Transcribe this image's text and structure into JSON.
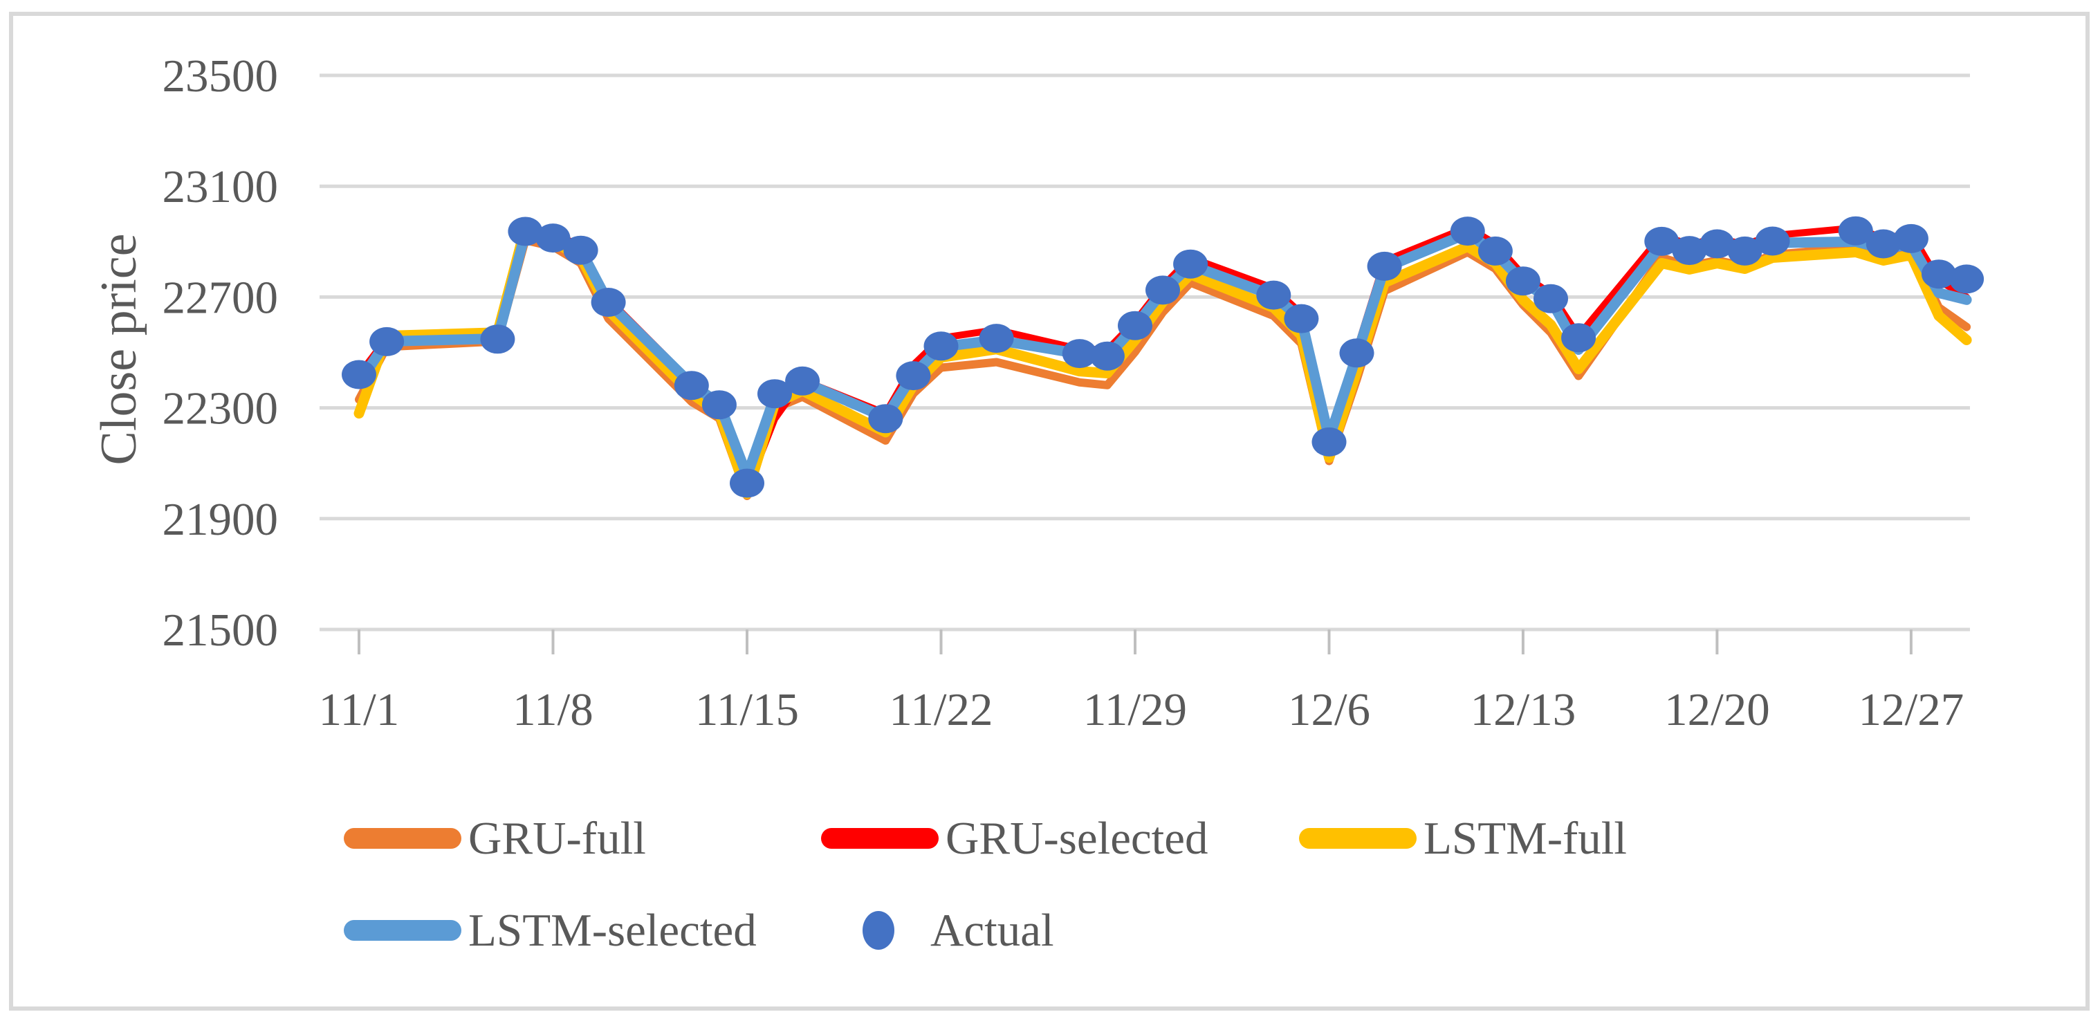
{
  "figure": {
    "background": "#ffffff",
    "border_color": "#d9d9d9"
  },
  "axis": {
    "text_color": "#595959",
    "grid_color": "#d9d9d9",
    "tick_color": "#bfbfbf"
  },
  "chart_data": {
    "type": "line",
    "title": "",
    "xlabel": "",
    "ylabel": "Close price",
    "ylim": [
      21500,
      23500
    ],
    "yticks": [
      21500,
      21900,
      22300,
      22700,
      23100,
      23500
    ],
    "xtick_labels": [
      "11/1",
      "11/8",
      "11/15",
      "11/22",
      "11/29",
      "12/6",
      "12/13",
      "12/20",
      "12/27"
    ],
    "grid": "horizontal",
    "legend_position": "bottom",
    "x": [
      "11/1",
      "11/2",
      "11/6",
      "11/7",
      "11/8",
      "11/9",
      "11/10",
      "11/13",
      "11/14",
      "11/15",
      "11/16",
      "11/17",
      "11/20",
      "11/21",
      "11/22",
      "11/24",
      "11/27",
      "11/28",
      "11/29",
      "11/30",
      "12/1",
      "12/4",
      "12/5",
      "12/6",
      "12/7",
      "12/8",
      "12/11",
      "12/12",
      "12/13",
      "12/14",
      "12/15",
      "12/18",
      "12/19",
      "12/20",
      "12/21",
      "12/22",
      "12/25",
      "12/26",
      "12/27",
      "12/28",
      "12/29"
    ],
    "series": [
      {
        "name": "GRU-full",
        "color": "#ED7D31",
        "marker": "line",
        "values": [
          22330,
          22520,
          22540,
          22905,
          22882,
          22822,
          22622,
          22322,
          22262,
          21982,
          22298,
          22340,
          22182,
          22352,
          22445,
          22465,
          22392,
          22382,
          22502,
          22645,
          22752,
          22632,
          22532,
          22108,
          22402,
          22722,
          22862,
          22802,
          22672,
          22572,
          22415,
          22842,
          22812,
          22832,
          22812,
          22852,
          22880,
          22852,
          22872,
          22662,
          22592
        ]
      },
      {
        "name": "GRU-selected",
        "color": "#FF0000",
        "marker": "line",
        "values": [
          22420,
          22550,
          22558,
          22940,
          22932,
          22882,
          22692,
          22392,
          22322,
          22005,
          22260,
          22400,
          22280,
          22455,
          22552,
          22582,
          22512,
          22510,
          22612,
          22740,
          22842,
          22732,
          22640,
          22195,
          22510,
          22830,
          22952,
          22892,
          22780,
          22712,
          22560,
          22922,
          22890,
          22912,
          22890,
          22922,
          22950,
          22912,
          22930,
          22760,
          22700
        ]
      },
      {
        "name": "LSTM-full",
        "color": "#FFC000",
        "marker": "line",
        "values": [
          22280,
          22560,
          22572,
          22950,
          22900,
          22845,
          22652,
          22352,
          22282,
          21990,
          22315,
          22362,
          22212,
          22382,
          22482,
          22512,
          22432,
          22425,
          22545,
          22682,
          22782,
          22662,
          22562,
          22120,
          22432,
          22752,
          22882,
          22822,
          22690,
          22600,
          22440,
          22822,
          22800,
          22822,
          22802,
          22842,
          22862,
          22832,
          22852,
          22632,
          22545
        ]
      },
      {
        "name": "LSTM-selected",
        "color": "#5B9BD5",
        "marker": "line",
        "values": [
          22390,
          22540,
          22550,
          22930,
          22915,
          22870,
          22680,
          22385,
          22315,
          22055,
          22340,
          22395,
          22265,
          22420,
          22520,
          22545,
          22495,
          22485,
          22595,
          22720,
          22815,
          22705,
          22620,
          22190,
          22490,
          22805,
          22930,
          22860,
          22755,
          22690,
          22510,
          22890,
          22860,
          22885,
          22860,
          22895,
          22900,
          22875,
          22890,
          22715,
          22690
        ]
      },
      {
        "name": "Actual",
        "color": "#4472C4",
        "marker": "dot",
        "values": [
          22420,
          22539,
          22548,
          22937,
          22913,
          22869,
          22681,
          22381,
          22311,
          22028,
          22351,
          22397,
          22261,
          22416,
          22523,
          22551,
          22496,
          22487,
          22597,
          22725,
          22819,
          22707,
          22622,
          22177,
          22498,
          22811,
          22938,
          22866,
          22758,
          22694,
          22553,
          22901,
          22868,
          22892,
          22866,
          22902,
          22939,
          22892,
          22911,
          22783,
          22765
        ]
      }
    ]
  },
  "legend": {
    "row1": [
      "GRU-full",
      "GRU-selected",
      "LSTM-full"
    ],
    "row2": [
      "LSTM-selected",
      "Actual"
    ]
  }
}
